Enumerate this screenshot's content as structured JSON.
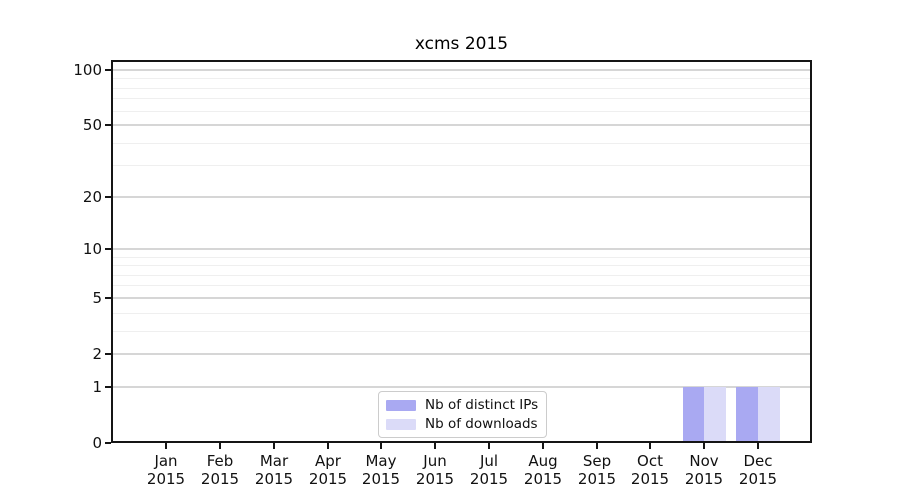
{
  "chart_data": {
    "type": "bar",
    "title": "xcms 2015",
    "months": [
      "Jan",
      "Feb",
      "Mar",
      "Apr",
      "May",
      "Jun",
      "Jul",
      "Aug",
      "Sep",
      "Oct",
      "Nov",
      "Dec"
    ],
    "year": "2015",
    "categories": [
      "Jan 2015",
      "Feb 2015",
      "Mar 2015",
      "Apr 2015",
      "May 2015",
      "Jun 2015",
      "Jul 2015",
      "Aug 2015",
      "Sep 2015",
      "Oct 2015",
      "Nov 2015",
      "Dec 2015"
    ],
    "series": [
      {
        "name": "Nb of distinct IPs",
        "color": "#a9a9f2",
        "values": [
          0,
          0,
          0,
          0,
          0,
          0,
          0,
          0,
          0,
          0,
          1,
          1
        ]
      },
      {
        "name": "Nb of downloads",
        "color": "#dbdbf8",
        "values": [
          0,
          0,
          0,
          0,
          0,
          0,
          0,
          0,
          0,
          0,
          1,
          1
        ]
      }
    ],
    "yscale": "log1p",
    "ylim": [
      0,
      113
    ],
    "yticks": [
      0,
      1,
      2,
      5,
      10,
      20,
      50,
      100
    ],
    "minor_yticks": [
      3,
      4,
      6,
      7,
      8,
      9,
      30,
      40,
      60,
      70,
      80,
      90
    ],
    "grid": "horizontal",
    "legend_position": "lower center",
    "xlabel": "",
    "ylabel": ""
  },
  "colors": {
    "background": "#ffffff",
    "spine": "#151515",
    "major_grid": "#d6d6d6",
    "minor_grid": "#efefef",
    "legend_border": "#cccccc",
    "text": "#111111"
  }
}
